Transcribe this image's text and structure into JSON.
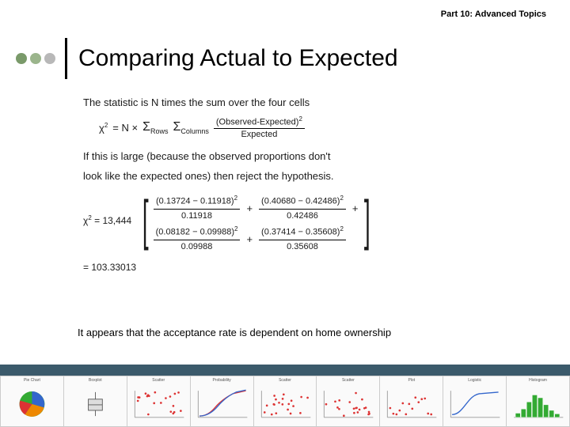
{
  "header": {
    "part_label": "Part 10: Advanced Topics"
  },
  "title": "Comparing Actual to Expected",
  "dots": [
    "#7a9a6a",
    "#9bb58c",
    "#b8b8b8"
  ],
  "body": {
    "line1": "The statistic is N times the sum over the four cells",
    "formula": {
      "lhs": "χ",
      "eq": "= N ×",
      "sigma1": "Σ",
      "sub1": "Rows",
      "sigma2": "Σ",
      "sub2": "Columns",
      "frac_num": "(Observed-Expected)",
      "frac_den": "Expected"
    },
    "line2a": "If this is large (because the observed proportions don't",
    "line2b": "look like the expected ones) then reject the hypothesis.",
    "calc": {
      "lhs": "χ",
      "n_label": "= 13,444",
      "cells": [
        {
          "a": "0.13724",
          "b": "0.11918",
          "den": "0.11918"
        },
        {
          "a": "0.40680",
          "b": "0.42486",
          "den": "0.42486"
        },
        {
          "a": "0.08182",
          "b": "0.09988",
          "den": "0.09988"
        },
        {
          "a": "0.37414",
          "b": "0.35608",
          "den": "0.35608"
        }
      ],
      "result": "=  103.33013"
    }
  },
  "conclusion": "It appears that the acceptance rate is dependent on home ownership",
  "footer": {
    "bar_color": "#3b5a6b",
    "thumbs": [
      {
        "kind": "pie",
        "title": "Pie Chart"
      },
      {
        "kind": "box",
        "title": "Boxplot"
      },
      {
        "kind": "scatter",
        "title": "Scatter"
      },
      {
        "kind": "curve",
        "title": "Probability"
      },
      {
        "kind": "scatter",
        "title": "Scatter"
      },
      {
        "kind": "scatter",
        "title": "Scatter"
      },
      {
        "kind": "points",
        "title": "Plot"
      },
      {
        "kind": "scurve",
        "title": "Logistic"
      },
      {
        "kind": "hist",
        "title": "Histogram"
      }
    ]
  },
  "colors": {
    "red": "#d33",
    "blue": "#36c",
    "green": "#3a3",
    "orange": "#e80",
    "purple": "#83b",
    "gray": "#888"
  }
}
